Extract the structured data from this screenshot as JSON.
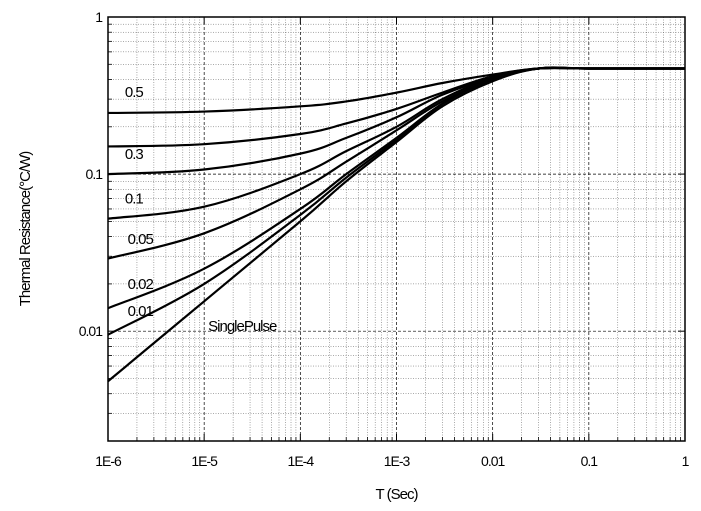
{
  "chart_data": {
    "type": "line",
    "xlabel": "T (Sec)",
    "ylabel": "Thermal Resistance(°C/W)",
    "xscale": "log",
    "yscale": "log",
    "xlim": [
      1e-06,
      1
    ],
    "ylim": [
      0.002,
      1
    ],
    "grid": true,
    "legend": "none (curves labeled inline)",
    "x_ticks": [
      {
        "value": 1e-06,
        "label": "1E-6"
      },
      {
        "value": 1e-05,
        "label": "1E-5"
      },
      {
        "value": 0.0001,
        "label": "1E-4"
      },
      {
        "value": 0.001,
        "label": "1E-3"
      },
      {
        "value": 0.01,
        "label": "0.01"
      },
      {
        "value": 0.1,
        "label": "0.1"
      },
      {
        "value": 1,
        "label": "1"
      }
    ],
    "y_ticks": [
      {
        "value": 0.01,
        "label": "0.01"
      },
      {
        "value": 0.1,
        "label": "0.1"
      },
      {
        "value": 1,
        "label": "1"
      }
    ],
    "series": [
      {
        "name": "0.5",
        "x": [
          1e-06,
          1e-05,
          0.0001,
          0.0003,
          0.001,
          0.003,
          0.01,
          0.03,
          0.1,
          1
        ],
        "y": [
          0.245,
          0.25,
          0.27,
          0.29,
          0.33,
          0.38,
          0.43,
          0.47,
          0.47,
          0.47
        ]
      },
      {
        "name": "0.3",
        "x": [
          1e-06,
          1e-05,
          0.0001,
          0.0003,
          0.001,
          0.003,
          0.01,
          0.03,
          0.1,
          1
        ],
        "y": [
          0.15,
          0.155,
          0.18,
          0.21,
          0.26,
          0.33,
          0.42,
          0.47,
          0.47,
          0.47
        ]
      },
      {
        "name": "",
        "x": [
          1e-06,
          1e-05,
          0.0001,
          0.0003,
          0.001,
          0.003,
          0.01,
          0.03,
          0.1,
          1
        ],
        "y": [
          0.1,
          0.107,
          0.135,
          0.17,
          0.23,
          0.32,
          0.41,
          0.47,
          0.47,
          0.47
        ]
      },
      {
        "name": "0.1",
        "x": [
          1e-06,
          1e-05,
          0.0001,
          0.0003,
          0.001,
          0.003,
          0.01,
          0.03,
          0.1,
          1
        ],
        "y": [
          0.052,
          0.062,
          0.1,
          0.14,
          0.2,
          0.3,
          0.41,
          0.47,
          0.47,
          0.47
        ]
      },
      {
        "name": "0.05",
        "x": [
          1e-06,
          1e-05,
          0.0001,
          0.0003,
          0.001,
          0.003,
          0.01,
          0.03,
          0.1,
          1
        ],
        "y": [
          0.029,
          0.042,
          0.08,
          0.12,
          0.19,
          0.29,
          0.4,
          0.47,
          0.47,
          0.47
        ]
      },
      {
        "name": "0.02",
        "x": [
          1e-06,
          1e-05,
          0.0001,
          0.0003,
          0.001,
          0.003,
          0.01,
          0.03,
          0.1,
          1
        ],
        "y": [
          0.014,
          0.025,
          0.06,
          0.1,
          0.17,
          0.28,
          0.4,
          0.47,
          0.47,
          0.47
        ]
      },
      {
        "name": "0.01",
        "x": [
          1e-06,
          1e-05,
          0.0001,
          0.0003,
          0.001,
          0.003,
          0.01,
          0.03,
          0.1,
          1
        ],
        "y": [
          0.0095,
          0.02,
          0.055,
          0.095,
          0.165,
          0.28,
          0.4,
          0.47,
          0.47,
          0.47
        ]
      },
      {
        "name": "SinglePulse",
        "x": [
          1e-06,
          1e-05,
          0.0001,
          0.0003,
          0.001,
          0.003,
          0.01,
          0.03,
          0.1,
          1
        ],
        "y": [
          0.0048,
          0.0155,
          0.05,
          0.09,
          0.16,
          0.27,
          0.39,
          0.47,
          0.47,
          0.47
        ]
      }
    ],
    "annotations": [
      {
        "text": "0.5",
        "x": 1.5e-06,
        "y": 0.31
      },
      {
        "text": "0.3",
        "x": 1.5e-06,
        "y": 0.125
      },
      {
        "text": "0.1",
        "x": 1.5e-06,
        "y": 0.065
      },
      {
        "text": "0.05",
        "x": 1.6e-06,
        "y": 0.036
      },
      {
        "text": "0.02",
        "x": 1.6e-06,
        "y": 0.0185
      },
      {
        "text": "0.01",
        "x": 1.6e-06,
        "y": 0.0125
      },
      {
        "text": "SinglePulse",
        "x": 1.1e-05,
        "y": 0.01
      }
    ]
  }
}
